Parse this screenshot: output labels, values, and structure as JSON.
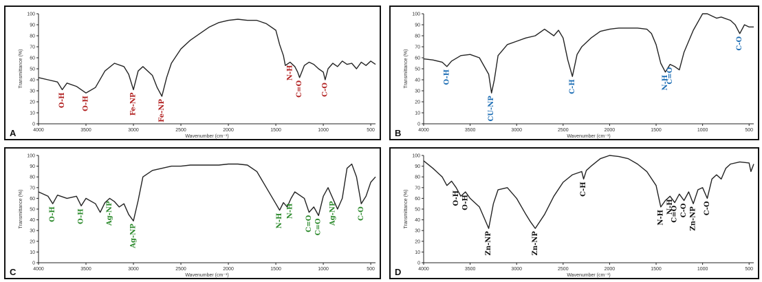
{
  "chart_data": [
    {
      "panel_label": "A",
      "type": "line",
      "xlabel": "Wavenumber (cm⁻¹)",
      "ylabel": "Transmittance (%)",
      "xlim": [
        4000,
        450
      ],
      "ylim": [
        0,
        100
      ],
      "x_ticks": [
        4000,
        3500,
        3000,
        2500,
        2000,
        1500,
        1000,
        500
      ],
      "y_ticks": [
        0,
        10,
        20,
        30,
        40,
        50,
        60,
        70,
        80,
        90,
        100
      ],
      "annotation_color": "#b22222",
      "x": [
        4000,
        3900,
        3800,
        3750,
        3700,
        3600,
        3500,
        3400,
        3300,
        3200,
        3100,
        3050,
        3000,
        2950,
        2900,
        2800,
        2750,
        2700,
        2650,
        2600,
        2500,
        2400,
        2300,
        2200,
        2100,
        2000,
        1900,
        1800,
        1700,
        1600,
        1500,
        1460,
        1420,
        1400,
        1350,
        1300,
        1270,
        1250,
        1200,
        1150,
        1100,
        1050,
        1000,
        980,
        950,
        900,
        850,
        800,
        750,
        700,
        650,
        600,
        550,
        500,
        450
      ],
      "y": [
        42,
        40,
        38,
        31,
        37,
        34,
        28,
        33,
        48,
        55,
        52,
        45,
        31,
        48,
        52,
        44,
        33,
        25,
        42,
        55,
        68,
        76,
        82,
        88,
        92,
        94,
        95,
        94,
        94,
        91,
        85,
        72,
        62,
        53,
        56,
        52,
        47,
        42,
        53,
        56,
        54,
        50,
        47,
        40,
        50,
        55,
        52,
        57,
        54,
        55,
        50,
        56,
        53,
        57,
        54
      ],
      "peaks": [
        {
          "label": "O-H",
          "x": 3750
        },
        {
          "label": "O-H",
          "x": 3500
        },
        {
          "label": "Fe-NP",
          "x": 3000
        },
        {
          "label": "Fe-NP",
          "x": 2700
        },
        {
          "label": "N-H",
          "x": 1350
        },
        {
          "label": "C=O",
          "x": 1250
        },
        {
          "label": "C-O",
          "x": 980
        }
      ]
    },
    {
      "panel_label": "B",
      "type": "line",
      "xlabel": "Wavenumber (cm⁻¹)",
      "ylabel": "Transmittance (%)",
      "xlim": [
        4000,
        450
      ],
      "ylim": [
        0,
        100
      ],
      "x_ticks": [
        4000,
        3500,
        3000,
        2500,
        2000,
        1500,
        1000,
        500
      ],
      "y_ticks": [
        0,
        10,
        20,
        30,
        40,
        50,
        60,
        70,
        80,
        90,
        100
      ],
      "annotation_color": "#1f6fb5",
      "x": [
        4000,
        3900,
        3800,
        3750,
        3700,
        3600,
        3500,
        3400,
        3300,
        3270,
        3240,
        3200,
        3100,
        3000,
        2900,
        2800,
        2700,
        2600,
        2550,
        2500,
        2450,
        2400,
        2350,
        2300,
        2200,
        2100,
        2000,
        1900,
        1800,
        1700,
        1600,
        1550,
        1500,
        1450,
        1400,
        1350,
        1300,
        1250,
        1200,
        1100,
        1000,
        950,
        900,
        850,
        800,
        700,
        650,
        600,
        550,
        500,
        450
      ],
      "y": [
        59,
        58,
        56,
        52,
        57,
        62,
        63,
        60,
        45,
        28,
        40,
        62,
        72,
        75,
        78,
        80,
        86,
        80,
        85,
        78,
        58,
        43,
        63,
        70,
        78,
        84,
        86,
        87,
        87,
        87,
        86,
        82,
        72,
        55,
        47,
        54,
        52,
        49,
        65,
        85,
        100,
        100,
        98,
        96,
        97,
        94,
        90,
        82,
        90,
        88,
        88
      ],
      "peaks": [
        {
          "label": "O-H",
          "x": 3750
        },
        {
          "label": "CU-NP",
          "x": 3270
        },
        {
          "label": "C-H",
          "x": 2400
        },
        {
          "label": "N-H",
          "x": 1400
        },
        {
          "label": "C=O",
          "x": 1350
        },
        {
          "label": "C-O",
          "x": 600
        }
      ]
    },
    {
      "panel_label": "C",
      "type": "line",
      "xlabel": "Wavenumber (cm⁻¹)",
      "ylabel": "Transmittance (%)",
      "xlim": [
        4000,
        450
      ],
      "ylim": [
        0,
        100
      ],
      "x_ticks": [
        4000,
        3500,
        3000,
        2500,
        2000,
        1500,
        1000,
        500
      ],
      "y_ticks": [
        0,
        10,
        20,
        30,
        40,
        50,
        60,
        70,
        80,
        90,
        100
      ],
      "annotation_color": "#2e8b2e",
      "x": [
        4000,
        3900,
        3850,
        3800,
        3700,
        3600,
        3550,
        3500,
        3400,
        3350,
        3300,
        3250,
        3200,
        3150,
        3100,
        3050,
        3000,
        2950,
        2900,
        2800,
        2700,
        2600,
        2500,
        2400,
        2300,
        2200,
        2100,
        2000,
        1900,
        1800,
        1700,
        1600,
        1500,
        1460,
        1420,
        1380,
        1340,
        1300,
        1200,
        1150,
        1100,
        1050,
        1000,
        950,
        900,
        850,
        800,
        750,
        700,
        650,
        600,
        550,
        500,
        450
      ],
      "y": [
        66,
        62,
        55,
        63,
        60,
        62,
        53,
        60,
        55,
        47,
        56,
        60,
        57,
        52,
        55,
        45,
        39,
        58,
        80,
        86,
        88,
        90,
        90,
        91,
        91,
        91,
        91,
        92,
        92,
        91,
        85,
        70,
        55,
        49,
        56,
        52,
        60,
        66,
        60,
        47,
        52,
        44,
        62,
        70,
        60,
        50,
        60,
        88,
        92,
        80,
        55,
        62,
        75,
        80
      ],
      "peaks": [
        {
          "label": "O-H",
          "x": 3850
        },
        {
          "label": "O-H",
          "x": 3550
        },
        {
          "label": "Ag-NP",
          "x": 3250
        },
        {
          "label": "Ag-NP",
          "x": 3000
        },
        {
          "label": "N-H",
          "x": 1460
        },
        {
          "label": "N-H",
          "x": 1350
        },
        {
          "label": "C=O",
          "x": 1150
        },
        {
          "label": "C=O",
          "x": 1050
        },
        {
          "label": "Ag-NP",
          "x": 900
        },
        {
          "label": "C-O",
          "x": 600
        }
      ]
    },
    {
      "panel_label": "D",
      "type": "line",
      "xlabel": "Wavenumber (cm⁻¹)",
      "ylabel": "Transmittance (%)",
      "xlim": [
        4000,
        450
      ],
      "ylim": [
        0,
        100
      ],
      "x_ticks": [
        4000,
        3500,
        3000,
        2500,
        2000,
        1500,
        1000,
        500
      ],
      "y_ticks": [
        0,
        10,
        20,
        30,
        40,
        50,
        60,
        70,
        80,
        90,
        100
      ],
      "annotation_color": "#111111",
      "x": [
        4000,
        3900,
        3800,
        3750,
        3700,
        3650,
        3600,
        3550,
        3500,
        3400,
        3350,
        3300,
        3250,
        3200,
        3100,
        3000,
        2900,
        2850,
        2800,
        2700,
        2600,
        2500,
        2400,
        2300,
        2280,
        2250,
        2200,
        2100,
        2000,
        1900,
        1800,
        1700,
        1600,
        1500,
        1450,
        1400,
        1350,
        1300,
        1250,
        1200,
        1150,
        1100,
        1050,
        1000,
        950,
        900,
        850,
        800,
        750,
        700,
        600,
        500,
        480,
        450
      ],
      "y": [
        95,
        88,
        80,
        72,
        76,
        70,
        62,
        66,
        60,
        52,
        42,
        32,
        55,
        68,
        70,
        60,
        45,
        38,
        32,
        45,
        62,
        75,
        82,
        85,
        78,
        86,
        90,
        97,
        100,
        99,
        97,
        92,
        85,
        72,
        52,
        58,
        62,
        56,
        64,
        58,
        66,
        55,
        68,
        70,
        60,
        78,
        82,
        78,
        88,
        92,
        94,
        93,
        85,
        92
      ],
      "peaks": [
        {
          "label": "O-H",
          "x": 3650
        },
        {
          "label": "O-H",
          "x": 3550
        },
        {
          "label": "Zn-NP",
          "x": 3300
        },
        {
          "label": "Zn-NP",
          "x": 2800
        },
        {
          "label": "C-H",
          "x": 2280
        },
        {
          "label": "N-H",
          "x": 1450
        },
        {
          "label": "N-H",
          "x": 1350
        },
        {
          "label": "C=O",
          "x": 1300
        },
        {
          "label": "C-O",
          "x": 1200
        },
        {
          "label": "Zn-NP",
          "x": 1100
        },
        {
          "label": "C-O",
          "x": 950
        }
      ]
    }
  ]
}
